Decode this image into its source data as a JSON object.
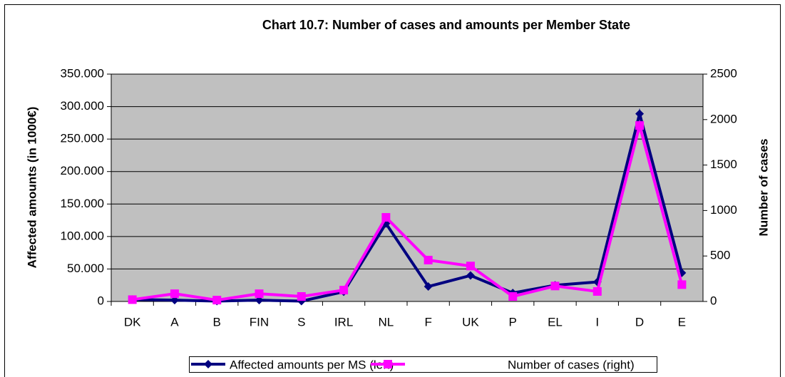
{
  "chart_data": {
    "type": "line",
    "title": "Chart 10.7: Number of cases and amounts per Member State",
    "ylabel": "Affected amounts (in 1000€)",
    "y2label": "Number of cases",
    "categories": [
      "DK",
      "A",
      "B",
      "FIN",
      "S",
      "IRL",
      "NL",
      "F",
      "UK",
      "P",
      "EL",
      "I",
      "D",
      "E"
    ],
    "series": [
      {
        "name": "Affected amounts per MS (left)",
        "color": "#000080",
        "marker": "diamond",
        "axis": "y",
        "values": [
          3000,
          2000,
          500,
          2000,
          500,
          15000,
          120000,
          23000,
          40000,
          13000,
          25000,
          30000,
          289000,
          44000
        ]
      },
      {
        "name": "Number of cases (right)",
        "color": "#ff00ff",
        "marker": "square",
        "axis": "y2",
        "values": [
          20,
          85,
          15,
          85,
          55,
          125,
          925,
          455,
          390,
          55,
          170,
          110,
          1935,
          185
        ]
      }
    ],
    "ylim": [
      0,
      350000
    ],
    "yticks": [
      0,
      {
        "value": 50000,
        "label": "50.000"
      },
      {
        "value": 100000,
        "label": "100.000"
      },
      {
        "value": 150000,
        "label": "150.000"
      },
      {
        "value": 200000,
        "label": "200.000"
      },
      {
        "value": 250000,
        "label": "250.000"
      },
      {
        "value": 300000,
        "label": "300.000"
      },
      {
        "value": 350000,
        "label": "350.000"
      }
    ],
    "y2lim": [
      0,
      2500
    ],
    "y2ticks": [
      0,
      500,
      1000,
      1500,
      2000,
      2500
    ],
    "grid": true,
    "legend": "bottom"
  }
}
